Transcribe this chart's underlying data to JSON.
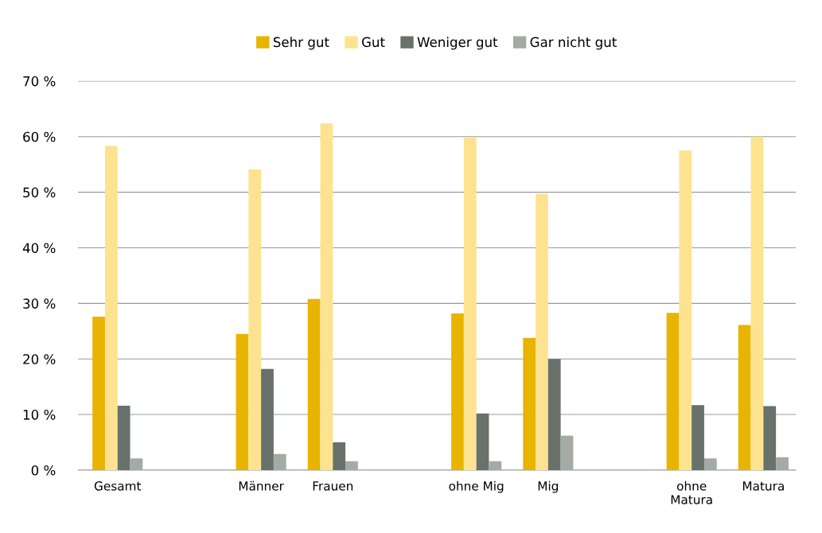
{
  "chart_data": {
    "type": "bar",
    "categories": [
      "Gesamt",
      null,
      "Männer",
      "Frauen",
      null,
      "ohne Mig",
      "Mig",
      null,
      "ohne\nMatura",
      "Matura"
    ],
    "series": [
      {
        "name": "Sehr gut",
        "color": "#e8b400",
        "values": [
          27.6,
          null,
          24.5,
          30.8,
          null,
          28.2,
          23.8,
          null,
          28.3,
          26.1
        ]
      },
      {
        "name": "Gut",
        "color": "#fde38f",
        "values": [
          58.3,
          null,
          54.1,
          62.4,
          null,
          59.8,
          49.7,
          null,
          57.5,
          60.0
        ]
      },
      {
        "name": "Weniger gut",
        "color": "#68716a",
        "values": [
          11.6,
          null,
          18.2,
          5.0,
          null,
          10.2,
          20.0,
          null,
          11.7,
          11.5
        ]
      },
      {
        "name": "Gar nicht gut",
        "color": "#a4aaa4",
        "values": [
          2.1,
          null,
          2.9,
          1.6,
          null,
          1.6,
          6.2,
          null,
          2.1,
          2.3
        ]
      }
    ],
    "ylim": [
      0,
      70
    ],
    "yticks": [
      {
        "value": 0,
        "label": "0 %"
      },
      {
        "value": 10,
        "label": "10 %"
      },
      {
        "value": 20,
        "label": "20 %"
      },
      {
        "value": 30,
        "label": "30 %"
      },
      {
        "value": 40,
        "label": "40 %"
      },
      {
        "value": 50,
        "label": "50 %"
      },
      {
        "value": 60,
        "label": "60 %"
      },
      {
        "value": 70,
        "label": "70 %"
      }
    ],
    "grid": "y",
    "legend": "top"
  }
}
